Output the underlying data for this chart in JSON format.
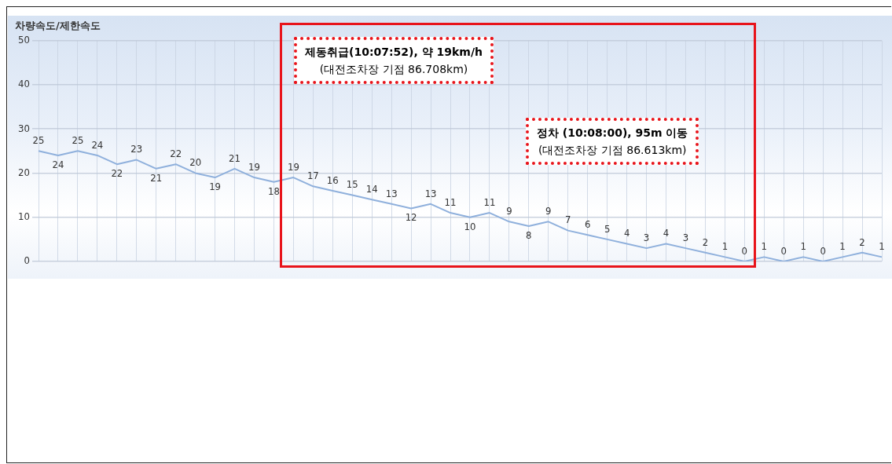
{
  "chart_data": {
    "type": "line",
    "title": "차량속도/제한속도",
    "categories": [
      null,
      null,
      null,
      null,
      null,
      null,
      null,
      null,
      null,
      null,
      null,
      null,
      null,
      null,
      null,
      null,
      null,
      null,
      null,
      null,
      null,
      null,
      null,
      null,
      null,
      null,
      null,
      null,
      null,
      null,
      null,
      null,
      null,
      null,
      null,
      null,
      null,
      null,
      null,
      null,
      null,
      null,
      null,
      null
    ],
    "series": [
      {
        "color": "#8fb0dc",
        "values": [
          25,
          24,
          25,
          24,
          22,
          23,
          21,
          22,
          20,
          19,
          21,
          19,
          18,
          19,
          17,
          16,
          15,
          14,
          13,
          12,
          13,
          11,
          10,
          11,
          9,
          8,
          9,
          7,
          6,
          5,
          4,
          3,
          4,
          3,
          2,
          1,
          0,
          1,
          0,
          1,
          0,
          1,
          2,
          1
        ]
      }
    ],
    "ylim": [
      0,
      50
    ],
    "yticks": [
      0,
      10,
      20,
      30,
      40,
      50
    ],
    "grid": true,
    "legend": false,
    "marker": "none",
    "line_style": "solid",
    "data_labels": true,
    "tick_labels": "y",
    "annotations": [
      "제동취급(10:07:52), 약 19km/h",
      "(대전조차장 기점 86.708km)",
      "정차 (10:08:00), 95m 이동",
      "(대전조차장 기점 86.613km)"
    ]
  }
}
